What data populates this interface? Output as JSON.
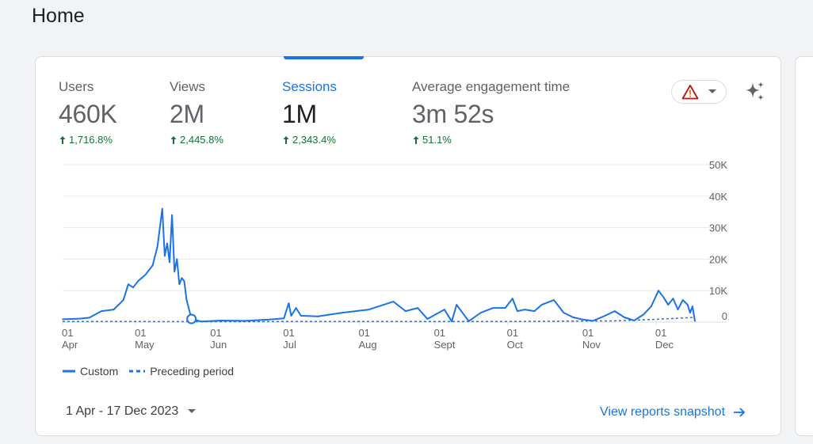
{
  "page": {
    "title": "Home"
  },
  "metrics": [
    {
      "label": "Users",
      "value": "460K",
      "change": "1,716.8%",
      "active": false
    },
    {
      "label": "Views",
      "value": "2M",
      "change": "2,445.8%",
      "active": false
    },
    {
      "label": "Sessions",
      "value": "1M",
      "change": "2,343.4%",
      "active": true
    },
    {
      "label": "Average engagement time",
      "value": "3m 52s",
      "change": "51.1%",
      "active": false
    }
  ],
  "colors": {
    "accent": "#1a73e8",
    "positive": "#137333",
    "warning": "#b31412",
    "grid": "#e8eaed"
  },
  "icons": {
    "alert": "warning-triangle-icon",
    "dropdown": "caret-down-icon",
    "insights": "sparkle-icon",
    "link": "arrow-right-icon"
  },
  "chart_data": {
    "type": "line",
    "x_ticks": [
      {
        "day": "01",
        "month": "Apr",
        "date": "2023-04-01"
      },
      {
        "day": "01",
        "month": "May",
        "date": "2023-05-01"
      },
      {
        "day": "01",
        "month": "Jun",
        "date": "2023-06-01"
      },
      {
        "day": "01",
        "month": "Jul",
        "date": "2023-07-01"
      },
      {
        "day": "01",
        "month": "Aug",
        "date": "2023-08-01"
      },
      {
        "day": "01",
        "month": "Sept",
        "date": "2023-09-01"
      },
      {
        "day": "01",
        "month": "Oct",
        "date": "2023-10-01"
      },
      {
        "day": "01",
        "month": "Nov",
        "date": "2023-11-01"
      },
      {
        "day": "01",
        "month": "Dec",
        "date": "2023-12-01"
      }
    ],
    "y_ticks": [
      "0",
      "10K",
      "20K",
      "30K",
      "40K",
      "50K"
    ],
    "ylim": [
      0,
      50000
    ],
    "y_axis_position": "right",
    "grid": true,
    "series": [
      {
        "name": "Custom",
        "style": "solid",
        "points": [
          [
            "2023-04-01",
            900
          ],
          [
            "2023-04-08",
            1100
          ],
          [
            "2023-04-12",
            1400
          ],
          [
            "2023-04-17",
            3500
          ],
          [
            "2023-04-22",
            4000
          ],
          [
            "2023-04-26",
            7000
          ],
          [
            "2023-04-28",
            12000
          ],
          [
            "2023-04-30",
            11000
          ],
          [
            "2023-05-02",
            13000
          ],
          [
            "2023-05-05",
            15000
          ],
          [
            "2023-05-08",
            18000
          ],
          [
            "2023-05-10",
            24000
          ],
          [
            "2023-05-12",
            36000
          ],
          [
            "2023-05-13",
            21000
          ],
          [
            "2023-05-14",
            25000
          ],
          [
            "2023-05-15",
            19000
          ],
          [
            "2023-05-16",
            34000
          ],
          [
            "2023-05-17",
            16000
          ],
          [
            "2023-05-18",
            20000
          ],
          [
            "2023-05-19",
            12000
          ],
          [
            "2023-05-20",
            14000
          ],
          [
            "2023-05-21",
            13000
          ],
          [
            "2023-05-22",
            7000
          ],
          [
            "2023-05-24",
            1000
          ],
          [
            "2023-05-28",
            200
          ],
          [
            "2023-06-05",
            500
          ],
          [
            "2023-06-15",
            400
          ],
          [
            "2023-06-25",
            800
          ],
          [
            "2023-07-01",
            1200
          ],
          [
            "2023-07-03",
            6000
          ],
          [
            "2023-07-04",
            2000
          ],
          [
            "2023-07-06",
            4500
          ],
          [
            "2023-07-08",
            2000
          ],
          [
            "2023-07-15",
            1800
          ],
          [
            "2023-07-25",
            3000
          ],
          [
            "2023-08-05",
            4000
          ],
          [
            "2023-08-15",
            6500
          ],
          [
            "2023-08-20",
            3500
          ],
          [
            "2023-08-25",
            4500
          ],
          [
            "2023-08-29",
            1000
          ],
          [
            "2023-09-05",
            4000
          ],
          [
            "2023-09-08",
            200
          ],
          [
            "2023-09-10",
            5500
          ],
          [
            "2023-09-15",
            300
          ],
          [
            "2023-09-20",
            3000
          ],
          [
            "2023-09-25",
            4500
          ],
          [
            "2023-09-30",
            4500
          ],
          [
            "2023-10-03",
            7500
          ],
          [
            "2023-10-05",
            3500
          ],
          [
            "2023-10-08",
            4000
          ],
          [
            "2023-10-12",
            3500
          ],
          [
            "2023-10-15",
            5500
          ],
          [
            "2023-10-20",
            7000
          ],
          [
            "2023-10-24",
            3000
          ],
          [
            "2023-10-28",
            1500
          ],
          [
            "2023-11-01",
            800
          ],
          [
            "2023-11-05",
            400
          ],
          [
            "2023-11-10",
            2000
          ],
          [
            "2023-11-14",
            3500
          ],
          [
            "2023-11-18",
            1500
          ],
          [
            "2023-11-22",
            500
          ],
          [
            "2023-11-26",
            2500
          ],
          [
            "2023-11-29",
            5000
          ],
          [
            "2023-12-02",
            10000
          ],
          [
            "2023-12-04",
            8000
          ],
          [
            "2023-12-06",
            5500
          ],
          [
            "2023-12-08",
            7500
          ],
          [
            "2023-12-10",
            4000
          ],
          [
            "2023-12-12",
            7000
          ],
          [
            "2023-12-14",
            5500
          ],
          [
            "2023-12-15",
            3000
          ],
          [
            "2023-12-16",
            5000
          ],
          [
            "2023-12-17",
            300
          ]
        ]
      },
      {
        "name": "Preceding period",
        "style": "dashed",
        "points": [
          [
            "2023-04-01",
            200
          ],
          [
            "2023-06-01",
            150
          ],
          [
            "2023-08-01",
            200
          ],
          [
            "2023-10-01",
            200
          ],
          [
            "2023-11-15",
            400
          ],
          [
            "2023-12-01",
            900
          ],
          [
            "2023-12-17",
            1500
          ]
        ]
      }
    ],
    "marker": {
      "series": "Custom",
      "date": "2023-05-24"
    }
  },
  "legend": {
    "custom": "Custom",
    "preceding": "Preceding period"
  },
  "footer": {
    "date_range": "1 Apr - 17 Dec 2023",
    "link": "View reports snapshot"
  }
}
